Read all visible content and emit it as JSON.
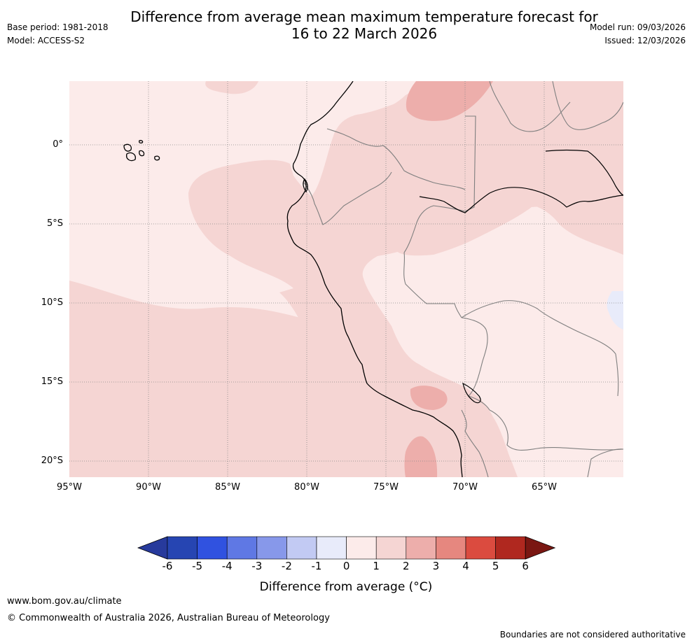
{
  "header": {
    "title_line1": "Difference from average mean maximum temperature forecast for",
    "title_line2": "16 to 22 March 2026",
    "base_period": "Base period: 1981-2018",
    "model": "Model: ACCESS-S2",
    "model_run": "Model run: 09/03/2026",
    "issued": "Issued: 12/03/2026"
  },
  "map": {
    "lat_labels": [
      "0°",
      "5°S",
      "10°S",
      "15°S",
      "20°S"
    ],
    "lon_labels": [
      "95°W",
      "90°W",
      "85°W",
      "80°W",
      "75°W",
      "70°W",
      "65°W"
    ]
  },
  "colorbar": {
    "ticks": [
      "-6",
      "-5",
      "-4",
      "-3",
      "-2",
      "-1",
      "0",
      "1",
      "2",
      "3",
      "4",
      "5",
      "6"
    ],
    "colors": [
      "#273a9c",
      "#2645b2",
      "#3052e0",
      "#5f78e4",
      "#8798ea",
      "#c2caf3",
      "#e8ebfa",
      "#fcebea",
      "#f5d5d3",
      "#edaeab",
      "#e6877f",
      "#db4b3f",
      "#b0281f",
      "#7a1712"
    ],
    "title": "Difference from average (°C)"
  },
  "footer": {
    "website": "www.bom.gov.au/climate",
    "copyright": "© Commonwealth of Australia 2026, Australian Bureau of Meteorology",
    "disclaimer": "Boundaries are not considered authoritative"
  }
}
